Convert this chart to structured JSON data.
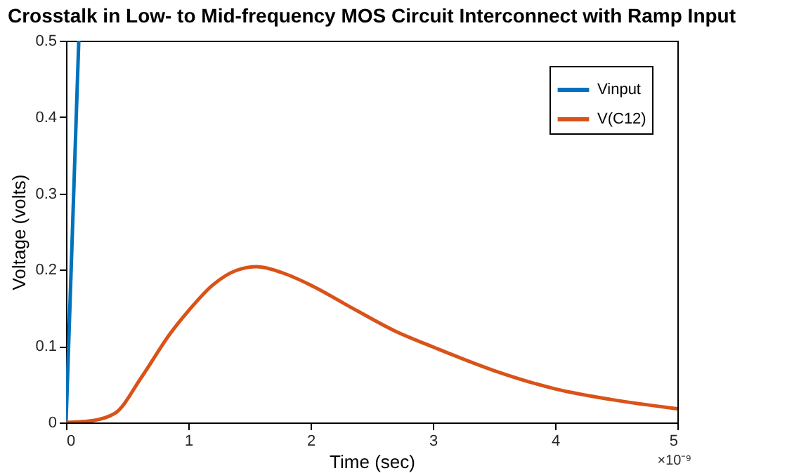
{
  "chart_data": {
    "type": "line",
    "title": "Crosstalk in Low- to Mid-frequency MOS Circuit Interconnect with Ramp Input",
    "xlabel": "Time (sec)",
    "ylabel": "Voltage (volts)",
    "annotations": [
      "×10⁻⁹"
    ],
    "series": [
      {
        "name": "Vinput",
        "color": "#0072bd",
        "x": [
          0,
          0.104
        ],
        "values": [
          0,
          0.5
        ]
      },
      {
        "name": "V(C12)",
        "color": "#d95319",
        "x": [
          0,
          0.2,
          0.4,
          0.62,
          0.85,
          1.0,
          1.2,
          1.39,
          1.56,
          1.77,
          2.0,
          2.35,
          2.7,
          3.0,
          3.5,
          4.0,
          4.46,
          5.0
        ],
        "values": [
          0,
          0.002,
          0.012,
          0.06,
          0.116,
          0.146,
          0.18,
          0.199,
          0.204,
          0.196,
          0.18,
          0.149,
          0.119,
          0.099,
          0.068,
          0.044,
          0.03,
          0.018
        ]
      }
    ],
    "xlim": [
      0,
      5
    ],
    "xticks": [
      0,
      1,
      2,
      3,
      4,
      5
    ],
    "ylim": [
      0,
      0.5
    ],
    "yticks": [
      0,
      0.1,
      0.2,
      0.3,
      0.4,
      0.5
    ],
    "legend": "top right",
    "grid": false
  }
}
